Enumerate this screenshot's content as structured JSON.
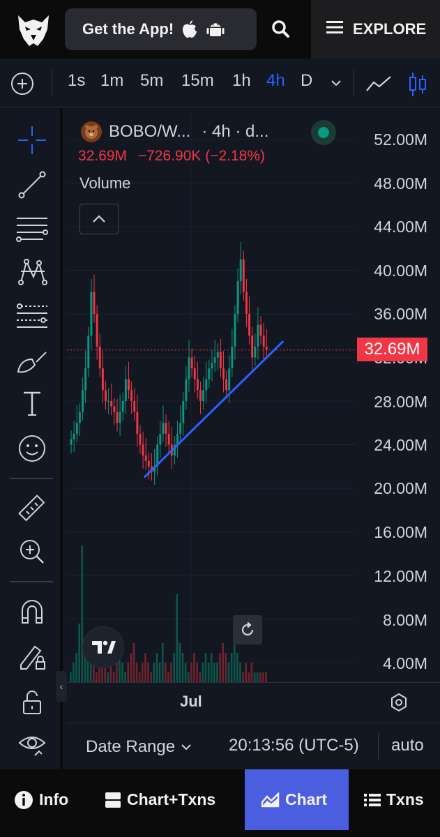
{
  "topbar": {
    "logo_icon": "eagle-logo-icon",
    "get_app_label": "Get the App!",
    "explore_label": "EXPLORE"
  },
  "timeframes": {
    "items": [
      "1s",
      "1m",
      "5m",
      "15m",
      "1h",
      "4h",
      "D"
    ],
    "active": "4h"
  },
  "left_tools": [
    "crosshair-icon",
    "trend-line-icon",
    "horizontal-lines-icon",
    "pattern-icon",
    "fib-icon",
    "brush-icon",
    "text-icon",
    "emoji-icon",
    "ruler-icon",
    "zoom-in-icon",
    "magnet-icon",
    "lock-drawing-icon",
    "unlock-icon",
    "eye-icon"
  ],
  "chart": {
    "symbol": "BOBO/W...",
    "interval": "· 4h · d...",
    "last_price": "32.69M",
    "change": "−726.90K (−2.18%)",
    "volume_label": "Volume",
    "price_tag": "32.69M",
    "price_labels": [
      "52.00M",
      "48.00M",
      "44.00M",
      "40.00M",
      "36.00M",
      "32.00M",
      "28.00M",
      "24.00M",
      "20.00M",
      "16.00M",
      "12.00M",
      "8.00M",
      "4.00M"
    ],
    "time_label": "Jul",
    "colors": {
      "up": "#089981",
      "down": "#f23645",
      "trendline": "#2962ff"
    }
  },
  "chart_data": {
    "type": "candlestick",
    "title": "BOBO/W... · 4h",
    "y_unit": "M",
    "ylim": [
      2,
      54
    ],
    "x_tick": "Jul",
    "close_series": [
      24.5,
      25,
      26,
      27,
      29,
      31,
      34,
      38,
      36,
      33,
      31,
      29,
      28,
      28,
      27.5,
      27,
      26,
      27,
      28,
      30,
      29,
      28,
      27,
      25,
      24,
      23,
      22.5,
      22,
      21.5,
      22,
      24,
      25,
      26,
      25,
      24,
      23,
      24,
      25,
      26,
      28,
      30,
      32,
      31,
      30,
      29,
      28,
      29,
      30,
      31,
      31.5,
      32,
      32.5,
      31,
      30,
      29,
      31,
      33,
      36,
      39,
      41,
      38,
      36,
      34,
      32,
      33,
      35,
      34,
      33,
      32.7
    ],
    "volume_bars": [
      1,
      2,
      3,
      6,
      14,
      4,
      3,
      2,
      2,
      1,
      2,
      3,
      2,
      1,
      2,
      1,
      2,
      3,
      2,
      1,
      2,
      3,
      4,
      2,
      1,
      2,
      3,
      2,
      1,
      2,
      3,
      2,
      4,
      2,
      1,
      2,
      3,
      9,
      4,
      3,
      2,
      1,
      2,
      3,
      2,
      1,
      2,
      3,
      2,
      3,
      2,
      2,
      3,
      4,
      3,
      2,
      3,
      4,
      3,
      2,
      1,
      2,
      1,
      2,
      1,
      1,
      1,
      1,
      1
    ],
    "last_price": 32.69,
    "trendline": {
      "from": [
        0.17,
        21
      ],
      "to": [
        0.58,
        33.5
      ]
    }
  },
  "info_bar": {
    "date_range_label": "Date Range",
    "clock": "20:13:56 (UTC-5)",
    "scale_label": "auto"
  },
  "bottom_nav": {
    "info": "Info",
    "chart_txns": "Chart+Txns",
    "chart": "Chart",
    "txns": "Txns"
  }
}
